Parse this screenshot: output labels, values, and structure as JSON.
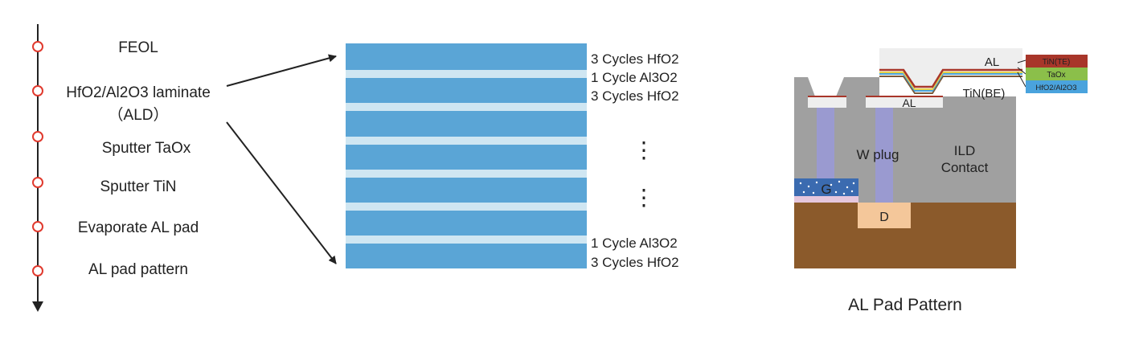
{
  "flow": {
    "steps": [
      {
        "lines": [
          "FEOL"
        ]
      },
      {
        "lines": [
          "HfO2/Al2O3 laminate",
          "（ALD）"
        ]
      },
      {
        "lines": [
          "Sputter TaOx"
        ]
      },
      {
        "lines": [
          "Sputter TiN"
        ]
      },
      {
        "lines": [
          "Evaporate AL pad"
        ]
      },
      {
        "lines": [
          "AL pad pattern"
        ]
      }
    ]
  },
  "stack": {
    "colors": {
      "hfo2": "#5aa5d6",
      "al2o3": "#cfe6f2"
    },
    "labels": {
      "top_hfo2": "3 Cycles HfO2",
      "top_al2o3": "1 Cycle Al3O2",
      "second_hfo2": "3 Cycles HfO2",
      "bottom_al2o3": "1 Cycle Al3O2",
      "bottom_hfo2": "3 Cycles HfO2"
    },
    "ellipsis": "⋮"
  },
  "device": {
    "labels": {
      "al_top": "AL",
      "tin_be": "TiN(BE)",
      "al_pad": "AL",
      "w_plug": "W plug",
      "ild": "ILD",
      "contact": "Contact",
      "gate": "G",
      "drain": "D"
    },
    "legend": [
      {
        "label": "TiN(TE)",
        "color": "#a8362a"
      },
      {
        "label": "TaOx",
        "color": "#8bbf4a"
      },
      {
        "label": "HfO2/Al2O3",
        "color": "#4aa3dd"
      }
    ],
    "caption": "AL Pad Pattern",
    "colors": {
      "substrate": "#8b5a2b",
      "ild": "#a0a0a0",
      "al": "#eeeeee",
      "w_plug": "#9a9ad0",
      "gate": "#3b6bb0",
      "drain": "#f4c79a"
    }
  }
}
